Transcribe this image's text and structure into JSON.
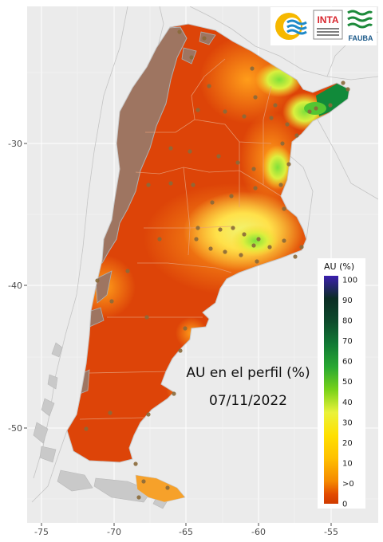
{
  "map": {
    "title_line1": "AU en el perfil (%)",
    "title_line2": "07/11/2022",
    "x_ticks": [
      "-75",
      "-70",
      "-65",
      "-60",
      "-55"
    ],
    "y_ticks": [
      "-30",
      "-40",
      "-50"
    ],
    "background_color": "#ebebeb",
    "grid_color": "#ffffff"
  },
  "legend": {
    "title": "AU (%)",
    "labels": [
      "100",
      "90",
      "80",
      "70",
      "60",
      "50",
      "40",
      "30",
      "20",
      "10",
      ">0",
      "0"
    ],
    "colors": [
      "#3b1fae",
      "#0b2d24",
      "#0d4a2c",
      "#117a35",
      "#28a832",
      "#78d21a",
      "#eaf23a",
      "#ffe000",
      "#ffc000",
      "#f58a00",
      "#e24a00",
      "#cf3b00"
    ]
  },
  "logos": {
    "inta": "INTA",
    "fauba": "FAUBA"
  }
}
